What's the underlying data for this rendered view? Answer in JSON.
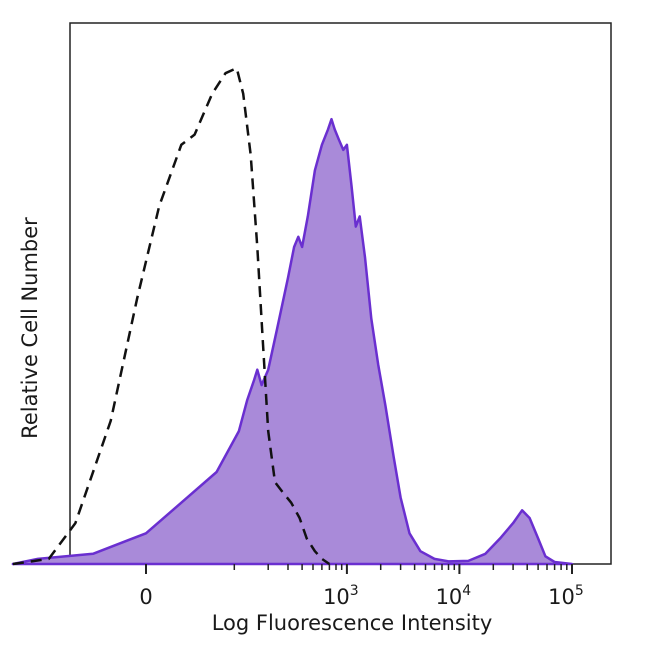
{
  "chart_data": {
    "type": "area",
    "title": "",
    "xlabel": "Log Fluorescence Intensity",
    "ylabel": "Relative Cell Number",
    "x_scale": "biexponential",
    "x_ticks": [
      {
        "value": 0,
        "base": "0",
        "exp": ""
      },
      {
        "value": 1000,
        "base": "10",
        "exp": "3"
      },
      {
        "value": 10000,
        "base": "10",
        "exp": "4"
      },
      {
        "value": 100000,
        "base": "10",
        "exp": "5"
      }
    ],
    "ylim": [
      0,
      1
    ],
    "grid": false,
    "legend": "none",
    "series": [
      {
        "style": "filled",
        "color": "#6a2fd0",
        "fill": "#a98ad9",
        "points": [
          [
            -250,
            0.0
          ],
          [
            -150,
            0.01
          ],
          [
            -60,
            0.02
          ],
          [
            0,
            0.06
          ],
          [
            40,
            0.12
          ],
          [
            80,
            0.18
          ],
          [
            110,
            0.26
          ],
          [
            130,
            0.32
          ],
          [
            150,
            0.36
          ],
          [
            160,
            0.38
          ],
          [
            175,
            0.35
          ],
          [
            200,
            0.38
          ],
          [
            240,
            0.46
          ],
          [
            300,
            0.56
          ],
          [
            340,
            0.62
          ],
          [
            370,
            0.64
          ],
          [
            400,
            0.62
          ],
          [
            450,
            0.68
          ],
          [
            520,
            0.77
          ],
          [
            600,
            0.82
          ],
          [
            680,
            0.85
          ],
          [
            730,
            0.87
          ],
          [
            780,
            0.85
          ],
          [
            850,
            0.83
          ],
          [
            930,
            0.81
          ],
          [
            1000,
            0.82
          ],
          [
            1100,
            0.74
          ],
          [
            1200,
            0.66
          ],
          [
            1300,
            0.68
          ],
          [
            1450,
            0.6
          ],
          [
            1650,
            0.48
          ],
          [
            1900,
            0.39
          ],
          [
            2200,
            0.31
          ],
          [
            2600,
            0.21
          ],
          [
            3000,
            0.13
          ],
          [
            3600,
            0.06
          ],
          [
            4500,
            0.025
          ],
          [
            6000,
            0.01
          ],
          [
            8000,
            0.005
          ],
          [
            12000,
            0.006
          ],
          [
            17000,
            0.02
          ],
          [
            23000,
            0.05
          ],
          [
            30000,
            0.08
          ],
          [
            36000,
            0.105
          ],
          [
            42000,
            0.09
          ],
          [
            50000,
            0.05
          ],
          [
            58000,
            0.015
          ],
          [
            70000,
            0.004
          ],
          [
            100000,
            0.0
          ]
        ]
      },
      {
        "style": "dashed",
        "color": "#111111",
        "points": [
          [
            -250,
            0.0
          ],
          [
            -120,
            0.01
          ],
          [
            -80,
            0.08
          ],
          [
            -40,
            0.28
          ],
          [
            -10,
            0.52
          ],
          [
            15,
            0.7
          ],
          [
            40,
            0.82
          ],
          [
            55,
            0.84
          ],
          [
            75,
            0.92
          ],
          [
            90,
            0.96
          ],
          [
            105,
            0.97
          ],
          [
            120,
            0.92
          ],
          [
            140,
            0.8
          ],
          [
            160,
            0.62
          ],
          [
            180,
            0.43
          ],
          [
            200,
            0.26
          ],
          [
            230,
            0.16
          ],
          [
            270,
            0.14
          ],
          [
            320,
            0.12
          ],
          [
            380,
            0.09
          ],
          [
            440,
            0.05
          ],
          [
            520,
            0.025
          ],
          [
            600,
            0.01
          ],
          [
            700,
            0.0
          ]
        ]
      }
    ]
  }
}
